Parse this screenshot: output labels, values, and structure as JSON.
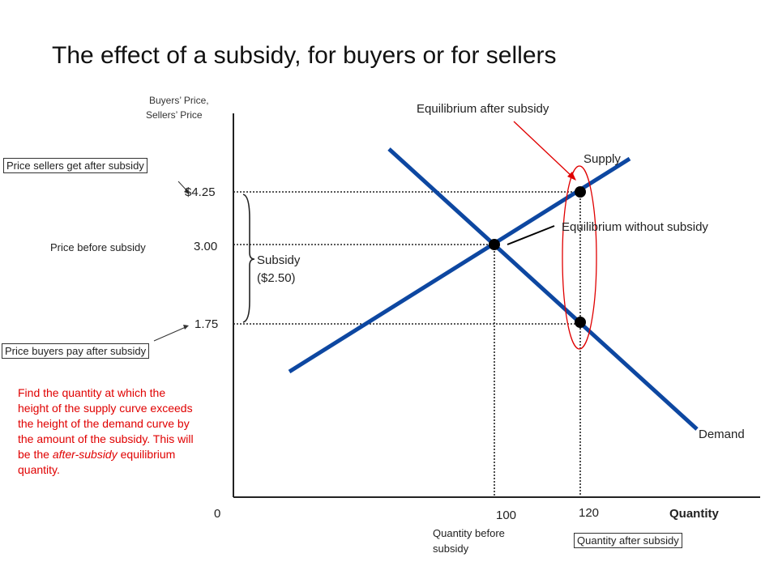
{
  "title": "The effect of a subsidy, for buyers or for sellers",
  "axes": {
    "y_label_line1": "Buyers’ Price,",
    "y_label_line2": "Sellers’ Price",
    "x_label": "Quantity",
    "origin": "0"
  },
  "prices": {
    "after_sellers": "$4.25",
    "before": "3.00",
    "after_buyers": "1.75"
  },
  "quantities": {
    "before": "100",
    "after": "120"
  },
  "labels": {
    "equilibrium_after": "Equilibrium after subsidy",
    "equilibrium_without": "Equilibrium without subsidy",
    "supply": "Supply",
    "demand": "Demand",
    "subsidy_line1": "Subsidy",
    "subsidy_line2": "($2.50)",
    "price_sellers_get": "Price sellers get after subsidy",
    "price_before_subsidy": "Price before subsidy",
    "price_buyers_pay": "Price buyers pay after subsidy",
    "quantity_before_line1": "Quantity before",
    "quantity_before_line2": "subsidy",
    "quantity_after_subsidy": "Quantity after subsidy"
  },
  "note": {
    "part1": "Find the quantity at which the height of the supply curve exceeds the height of the demand curve by the amount of the subsidy. This will be the ",
    "italic": "after-subsidy",
    "part2": " equilibrium quantity."
  },
  "colors": {
    "curve": "#0d47a1",
    "annotation": "#e00000",
    "axis": "#222222"
  }
}
